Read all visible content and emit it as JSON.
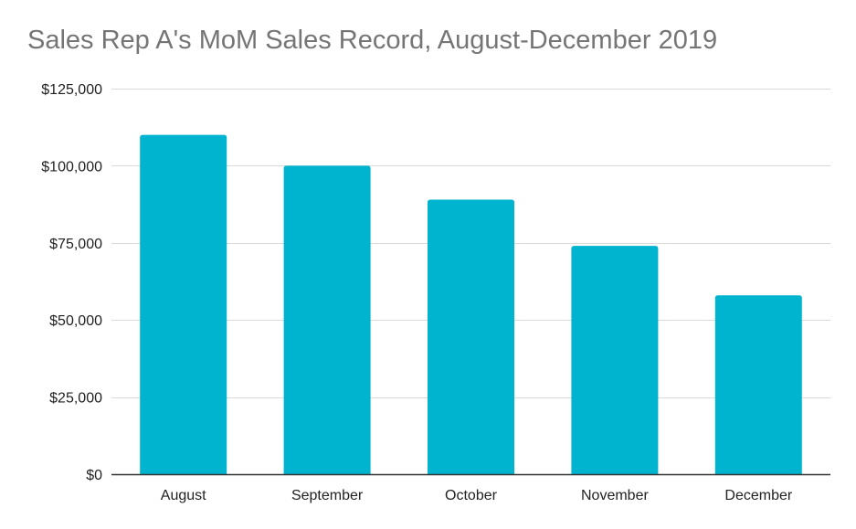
{
  "chart_data": {
    "type": "bar",
    "title": "Sales Rep A's MoM Sales Record, August-December 2019",
    "xlabel": "",
    "ylabel": "",
    "categories": [
      "August",
      "September",
      "October",
      "November",
      "December"
    ],
    "values": [
      110000,
      100000,
      89000,
      74000,
      58000
    ],
    "ylim": [
      0,
      125000
    ],
    "yticks": [
      0,
      25000,
      50000,
      75000,
      100000,
      125000
    ],
    "ytick_labels": [
      "$0",
      "$25,000",
      "$50,000",
      "$75,000",
      "$100,000",
      "$125,000"
    ],
    "grid": true,
    "legend": "none",
    "bar_color": "#00b4cf",
    "grid_color": "#d9d9d9",
    "axis_color": "#333333",
    "title_color": "#757575"
  }
}
